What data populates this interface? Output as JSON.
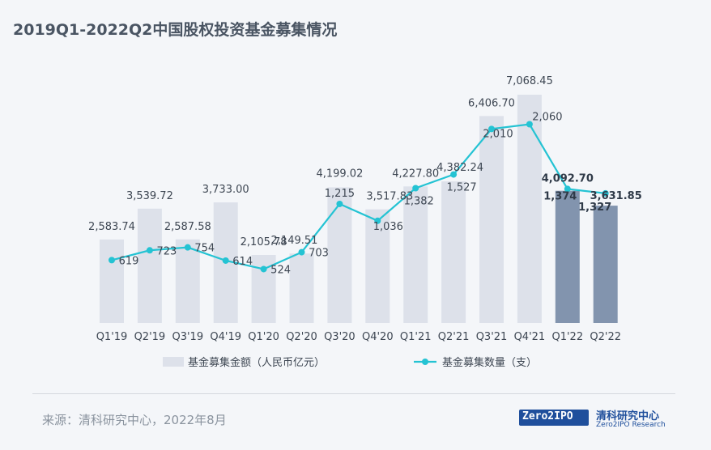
{
  "title": "2019Q1-2022Q2中国股权投资基金募集情况",
  "source": "来源：清科研究中心，2022年8月",
  "logo": {
    "mark": "Zero2IPO",
    "name_cn": "清科研究中心",
    "name_en": "Zero2IPO Research"
  },
  "chart_data": {
    "type": "bar",
    "categories": [
      "Q1'19",
      "Q2'19",
      "Q3'19",
      "Q4'19",
      "Q1'20",
      "Q2'20",
      "Q3'20",
      "Q4'20",
      "Q1'21",
      "Q2'21",
      "Q3'21",
      "Q4'21",
      "Q1'22",
      "Q2'22"
    ],
    "series": [
      {
        "name": "基金募集金额（人民币亿元）",
        "type": "bar",
        "values": [
          2583.74,
          3539.72,
          2587.58,
          3733.0,
          2105.78,
          2149.51,
          4199.02,
          3517.83,
          4227.8,
          4382.24,
          6406.7,
          7068.45,
          4092.7,
          3631.85
        ],
        "labels": [
          "2,583.74",
          "3,539.72",
          "2,587.58",
          "3,733.00",
          "2,105.78",
          "2,149.51",
          "4,199.02",
          "3,517.83",
          "4,227.80",
          "4,382.24",
          "6,406.70",
          "7,068.45",
          "4,092.70",
          "3,631.85"
        ],
        "color": "#dde1ea",
        "highlight_color": "#8294ae",
        "highlight_categories": [
          "Q1'22",
          "Q2'22"
        ]
      },
      {
        "name": "基金募集数量（支）",
        "type": "line",
        "values": [
          619,
          723,
          754,
          614,
          524,
          703,
          1215,
          1036,
          1382,
          1527,
          2010,
          2060,
          1374,
          1327
        ],
        "labels": [
          "619",
          "723",
          "754",
          "614",
          "524",
          "703",
          "1,215",
          "1,036",
          "1,382",
          "1,527",
          "2,010",
          "2,060",
          "1,374",
          "1,327"
        ],
        "color": "#24c3d3"
      }
    ],
    "legend_position": "bottom",
    "grid": false
  }
}
